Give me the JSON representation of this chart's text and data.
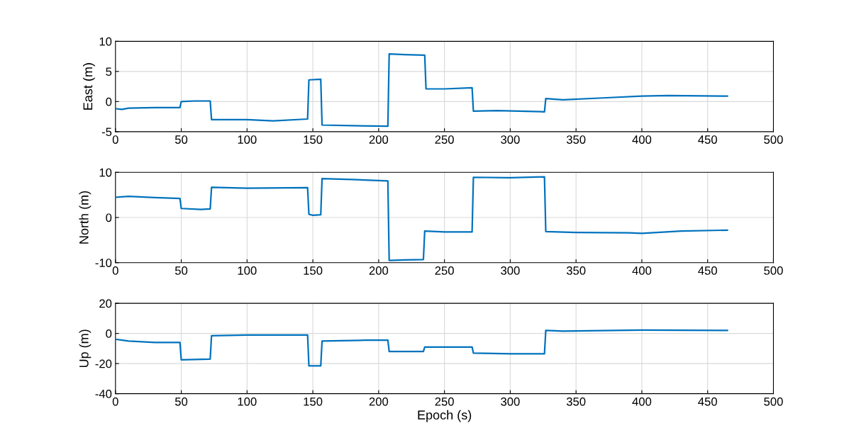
{
  "chart_data": [
    {
      "type": "line",
      "ylabel": "East (m)",
      "xlim": [
        0,
        500
      ],
      "xticks": [
        0,
        50,
        100,
        150,
        200,
        250,
        300,
        350,
        400,
        450,
        500
      ],
      "ylim": [
        -5,
        10
      ],
      "yticks": [
        -5,
        0,
        5,
        10
      ],
      "grid": true,
      "marker": "none",
      "line_style": "solid",
      "series": [
        {
          "color": "#0072bd",
          "x": [
            1,
            5,
            10,
            30,
            49,
            50,
            60,
            72,
            73,
            100,
            120,
            146,
            147,
            156,
            157,
            180,
            207,
            208,
            220,
            235,
            236,
            250,
            271,
            272,
            290,
            326,
            327,
            340,
            370,
            400,
            420,
            465
          ],
          "values": [
            -1.2,
            -1.3,
            -1.1,
            -1.0,
            -1.0,
            0.0,
            0.1,
            0.1,
            -3.0,
            -3.0,
            -3.2,
            -2.9,
            3.6,
            3.7,
            -3.9,
            -4.0,
            -4.1,
            7.9,
            7.8,
            7.7,
            2.1,
            2.1,
            2.3,
            -1.6,
            -1.5,
            -1.7,
            0.5,
            0.3,
            0.6,
            0.9,
            1.0,
            0.9
          ]
        }
      ]
    },
    {
      "type": "line",
      "ylabel": "North (m)",
      "xlim": [
        0,
        500
      ],
      "xticks": [
        0,
        50,
        100,
        150,
        200,
        250,
        300,
        350,
        400,
        450,
        500
      ],
      "ylim": [
        -10,
        10
      ],
      "yticks": [
        -10,
        0,
        10
      ],
      "grid": true,
      "marker": "none",
      "line_style": "solid",
      "series": [
        {
          "color": "#0072bd",
          "x": [
            1,
            10,
            30,
            49,
            50,
            65,
            72,
            73,
            100,
            146,
            147,
            150,
            156,
            157,
            180,
            207,
            208,
            220,
            234,
            235,
            250,
            271,
            272,
            300,
            326,
            327,
            350,
            390,
            400,
            430,
            465
          ],
          "values": [
            4.5,
            4.7,
            4.4,
            4.2,
            2.0,
            1.8,
            1.9,
            6.7,
            6.5,
            6.6,
            0.7,
            0.5,
            0.6,
            8.6,
            8.4,
            8.1,
            -9.5,
            -9.4,
            -9.3,
            -3.0,
            -3.2,
            -3.2,
            8.9,
            8.8,
            9.0,
            -3.1,
            -3.3,
            -3.4,
            -3.5,
            -3.0,
            -2.8
          ]
        }
      ]
    },
    {
      "type": "line",
      "ylabel": "Up (m)",
      "xlabel": "Epoch (s)",
      "xlim": [
        0,
        500
      ],
      "xticks": [
        0,
        50,
        100,
        150,
        200,
        250,
        300,
        350,
        400,
        450,
        500
      ],
      "ylim": [
        -40,
        20
      ],
      "yticks": [
        -40,
        -20,
        0,
        20
      ],
      "grid": true,
      "marker": "none",
      "line_style": "solid",
      "series": [
        {
          "color": "#0072bd",
          "x": [
            1,
            10,
            30,
            49,
            50,
            72,
            73,
            100,
            146,
            147,
            156,
            157,
            190,
            207,
            208,
            234,
            235,
            271,
            272,
            300,
            326,
            327,
            340,
            400,
            465
          ],
          "values": [
            -4,
            -5,
            -6,
            -6,
            -17.5,
            -17,
            -1.5,
            -1,
            -1,
            -21.5,
            -21.5,
            -5,
            -4.5,
            -4.5,
            -12,
            -12,
            -9,
            -9,
            -13,
            -13.5,
            -13.5,
            2,
            1.5,
            2.3,
            2
          ]
        }
      ]
    }
  ]
}
